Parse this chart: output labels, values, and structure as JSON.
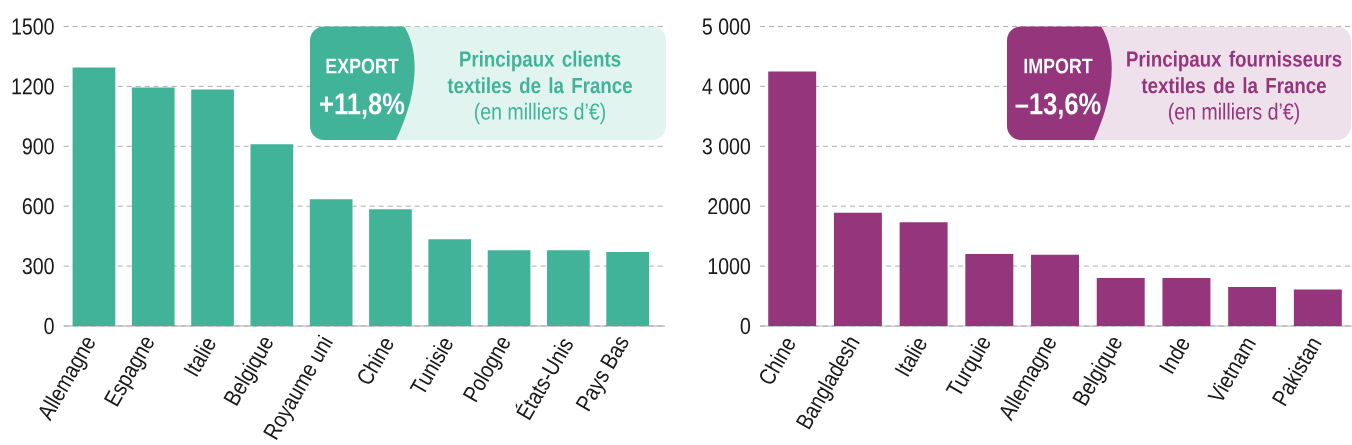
{
  "chart_data": [
    {
      "type": "bar",
      "title": "Principaux clients textiles de la France",
      "subtitle": "(en milliers d’€)",
      "annotations": [
        "EXPORT",
        "+11,8%"
      ],
      "categories": [
        "Allemagne",
        "Espagne",
        "Italie",
        "Belgique",
        "Royaume uni",
        "Chine",
        "Tunisie",
        "Pologne",
        "États-Unis",
        "Pays Bas"
      ],
      "values": [
        1295,
        1195,
        1185,
        910,
        635,
        585,
        435,
        380,
        380,
        370
      ],
      "color": "#40b399",
      "ylim": [
        0,
        1500
      ],
      "yticks": [
        0,
        300,
        600,
        900,
        1200,
        1500
      ],
      "grid": "y"
    },
    {
      "type": "bar",
      "title": "Principaux fournisseurs textiles de la France",
      "subtitle": "(en milliers d’€)",
      "annotations": [
        "IMPORT",
        "–13,6%"
      ],
      "categories": [
        "Chine",
        "Bangladesh",
        "Italie",
        "Turquie",
        "Allemagne",
        "Belgique",
        "Inde",
        "Vietnam",
        "Pakistan"
      ],
      "values": [
        4250,
        1890,
        1730,
        1200,
        1190,
        800,
        800,
        650,
        610
      ],
      "color": "#95367c",
      "ylim": [
        0,
        5000
      ],
      "yticks": [
        0,
        1000,
        2000,
        {
          "value": 3000,
          "label": "3 000"
        },
        {
          "value": 4000,
          "label": "4 000"
        },
        {
          "value": 5000,
          "label": "5 000"
        }
      ],
      "grid": "y"
    }
  ]
}
